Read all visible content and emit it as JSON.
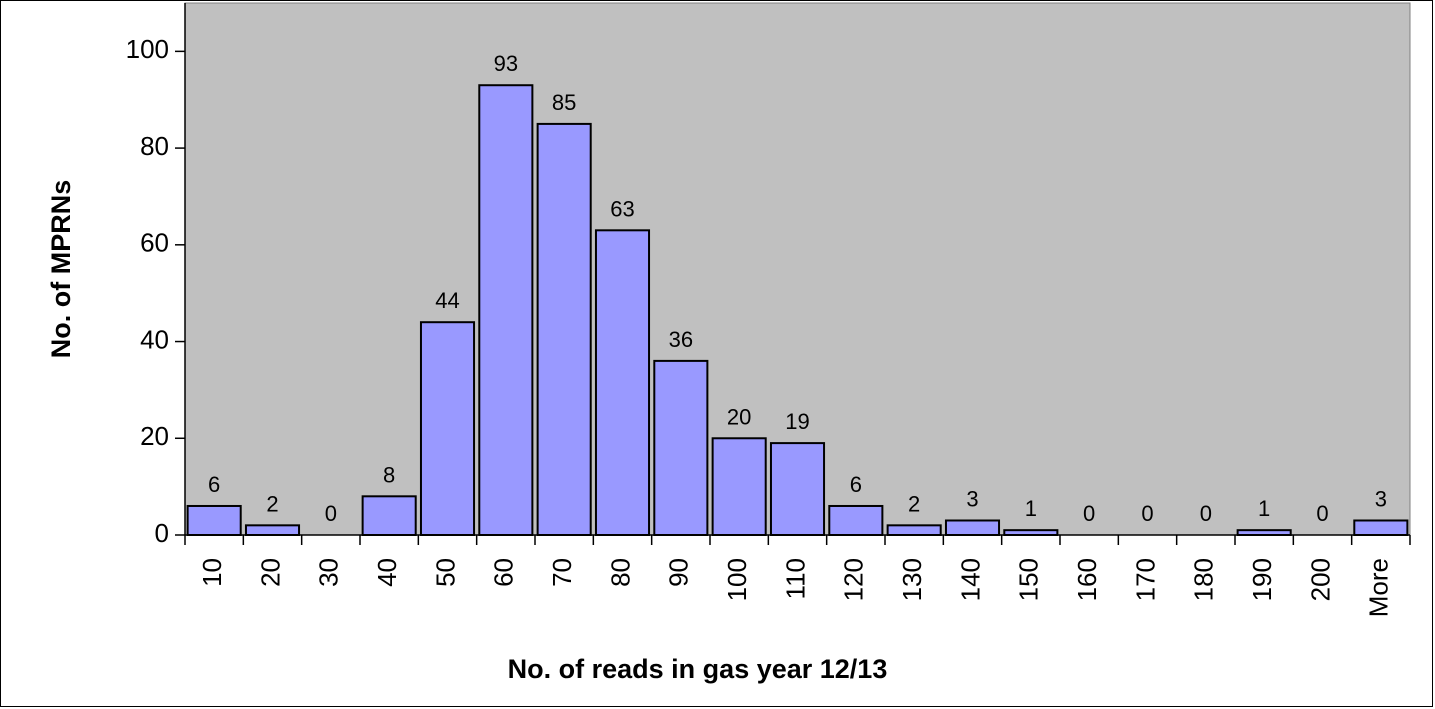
{
  "chart_data": {
    "type": "bar",
    "categories": [
      "10",
      "20",
      "30",
      "40",
      "50",
      "60",
      "70",
      "80",
      "90",
      "100",
      "110",
      "120",
      "130",
      "140",
      "150",
      "160",
      "170",
      "180",
      "190",
      "200",
      "More"
    ],
    "values": [
      6,
      2,
      0,
      8,
      44,
      93,
      85,
      63,
      36,
      20,
      19,
      6,
      2,
      3,
      1,
      0,
      0,
      0,
      1,
      0,
      3
    ],
    "title": "",
    "xlabel": "No. of reads in gas year 12/13",
    "ylabel": "No. of MPRNs",
    "ylim": [
      0,
      110
    ],
    "yticks": [
      0,
      20,
      40,
      60,
      80,
      100
    ],
    "grid": false,
    "legend": "none",
    "colors": {
      "plot_background": "#c0c0c0",
      "bar_fill": "#9999ff",
      "bar_stroke": "#000000"
    }
  }
}
